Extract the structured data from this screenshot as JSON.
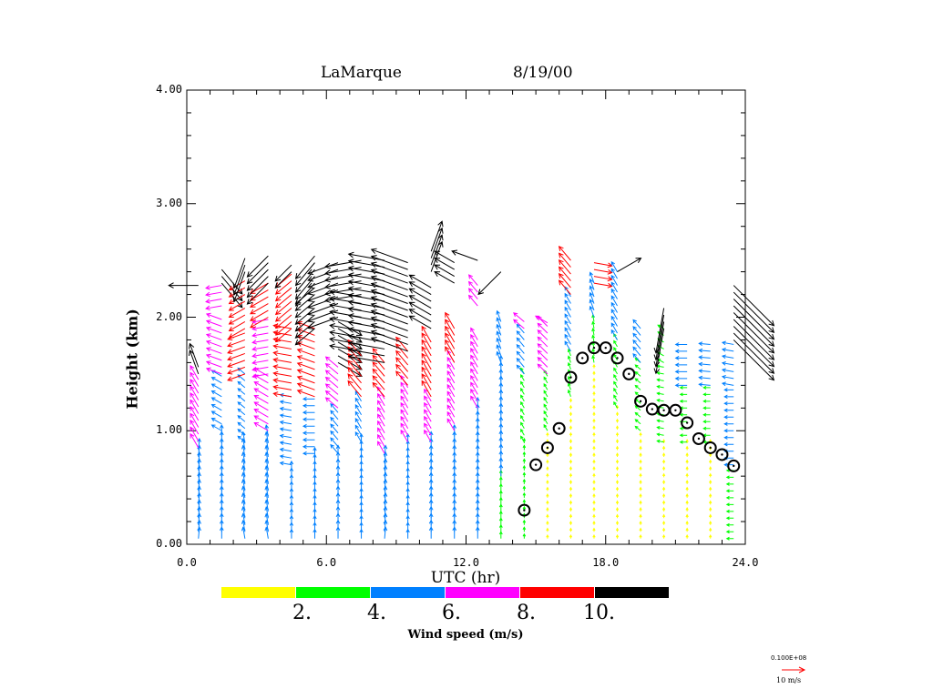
{
  "chart_data": {
    "type": "wind-profile",
    "title": "LaMarque",
    "date": "8/19/00",
    "xlabel": "UTC (hr)",
    "ylabel": "Height (km)",
    "xlim": [
      0,
      24
    ],
    "ylim": [
      0,
      4
    ],
    "xticks": [
      "0.0",
      "6.0",
      "12.0",
      "18.0",
      "24.0"
    ],
    "xtick_values": [
      0,
      6,
      12,
      18,
      24
    ],
    "yticks": [
      "0.00",
      "1.00",
      "2.00",
      "3.00",
      "4.00"
    ],
    "ytick_values": [
      0,
      1,
      2,
      3,
      4
    ],
    "colorbar": {
      "title": "Wind speed (m/s)",
      "labels": [
        "2.",
        "4.",
        "6.",
        "8.",
        "10."
      ],
      "colors": [
        "#ffff00",
        "#00ff00",
        "#0080ff",
        "#ff00ff",
        "#ff0000",
        "#000000"
      ]
    },
    "reference_vector": {
      "value_label": "0.100E+08",
      "unit_label": "10 m/s",
      "speed": 10,
      "color": "#ff0000"
    },
    "level_spacing_km": 0.06,
    "wind_profiles": [
      {
        "t": 0.5,
        "layers": [
          [
            0.05,
            0.85,
            5,
            185
          ],
          [
            0.85,
            1.45,
            7,
            150
          ],
          [
            1.5,
            1.6,
            11,
            160
          ],
          [
            2.28,
            2.32,
            13,
            90
          ]
        ]
      },
      {
        "t": 1.5,
        "layers": [
          [
            0.05,
            1.0,
            5,
            180
          ],
          [
            1.0,
            1.5,
            5,
            120
          ],
          [
            1.5,
            2.0,
            7,
            110
          ],
          [
            2.1,
            2.3,
            7,
            80
          ],
          [
            2.3,
            2.45,
            14,
            320
          ]
        ]
      },
      {
        "t": 2.5,
        "layers": [
          [
            0.05,
            0.9,
            5,
            170
          ],
          [
            0.9,
            1.5,
            4,
            130
          ],
          [
            1.5,
            1.9,
            8,
            70
          ],
          [
            1.9,
            2.35,
            8,
            60
          ],
          [
            2.4,
            2.55,
            14,
            20
          ]
        ]
      },
      {
        "t": 3.5,
        "layers": [
          [
            0.05,
            1.0,
            5,
            170
          ],
          [
            1.0,
            1.5,
            7,
            120
          ],
          [
            1.5,
            2.0,
            7,
            80
          ],
          [
            2.0,
            2.3,
            9,
            60
          ],
          [
            2.3,
            2.55,
            13,
            45
          ]
        ]
      },
      {
        "t": 4.5,
        "layers": [
          [
            0.05,
            0.7,
            4,
            180
          ],
          [
            0.7,
            1.3,
            5,
            100
          ],
          [
            1.3,
            1.9,
            8,
            100
          ],
          [
            1.9,
            2.4,
            9,
            50
          ],
          [
            2.4,
            2.5,
            10,
            45
          ]
        ]
      },
      {
        "t": 5.5,
        "layers": [
          [
            0.05,
            0.8,
            4,
            180
          ],
          [
            0.8,
            1.3,
            5,
            90
          ],
          [
            1.3,
            1.9,
            8,
            110
          ],
          [
            1.9,
            2.3,
            11,
            50
          ],
          [
            2.3,
            2.55,
            13,
            40
          ]
        ]
      },
      {
        "t": 6.5,
        "layers": [
          [
            0.05,
            0.8,
            5,
            180
          ],
          [
            0.8,
            1.2,
            5,
            140
          ],
          [
            1.2,
            1.6,
            7,
            130
          ],
          [
            1.6,
            2.0,
            12,
            300
          ],
          [
            2.0,
            2.5,
            14,
            70
          ]
        ]
      },
      {
        "t": 7.5,
        "layers": [
          [
            0.05,
            0.9,
            4,
            180
          ],
          [
            0.9,
            1.3,
            5,
            150
          ],
          [
            1.3,
            1.7,
            9,
            140
          ],
          [
            1.7,
            2.2,
            14,
            100
          ],
          [
            2.2,
            2.5,
            16,
            80
          ]
        ]
      },
      {
        "t": 8.5,
        "layers": [
          [
            0.05,
            0.8,
            5,
            185
          ],
          [
            0.8,
            1.3,
            6,
            150
          ],
          [
            1.3,
            1.6,
            8,
            140
          ],
          [
            1.6,
            2.5,
            16,
            100
          ]
        ]
      },
      {
        "t": 9.5,
        "layers": [
          [
            0.05,
            0.9,
            4,
            180
          ],
          [
            0.9,
            1.4,
            6,
            150
          ],
          [
            1.4,
            1.7,
            8,
            140
          ],
          [
            1.7,
            2.5,
            17,
            110
          ]
        ]
      },
      {
        "t": 10.5,
        "layers": [
          [
            0.05,
            0.9,
            5,
            180
          ],
          [
            0.9,
            1.3,
            6,
            150
          ],
          [
            1.3,
            1.8,
            8,
            150
          ],
          [
            1.9,
            2.3,
            11,
            120
          ],
          [
            2.4,
            2.6,
            14,
            200
          ]
        ]
      },
      {
        "t": 11.5,
        "layers": [
          [
            0.05,
            1.0,
            5,
            180
          ],
          [
            1.0,
            1.6,
            6,
            150
          ],
          [
            1.6,
            1.9,
            8,
            150
          ],
          [
            2.3,
            2.5,
            10,
            120
          ]
        ]
      },
      {
        "t": 12.5,
        "layers": [
          [
            0.05,
            1.2,
            5,
            180
          ],
          [
            1.2,
            1.8,
            6,
            150
          ],
          [
            2.1,
            2.3,
            6,
            140
          ],
          [
            2.5,
            2.52,
            12,
            110
          ]
        ]
      },
      {
        "t": 13.5,
        "layers": [
          [
            0.05,
            0.6,
            3,
            180
          ],
          [
            0.6,
            1.6,
            5,
            180
          ],
          [
            1.6,
            2.0,
            5,
            160
          ],
          [
            2.4,
            2.45,
            14,
            45
          ]
        ]
      },
      {
        "t": 14.5,
        "layers": [
          [
            0.05,
            0.9,
            2,
            180
          ],
          [
            0.9,
            1.5,
            3,
            150
          ],
          [
            1.5,
            1.9,
            5,
            140
          ],
          [
            1.9,
            2.0,
            6,
            130
          ]
        ]
      },
      {
        "t": 15.5,
        "layers": [
          [
            0.05,
            1.0,
            1.5,
            180
          ],
          [
            1.0,
            1.5,
            3,
            150
          ],
          [
            1.5,
            1.95,
            6,
            135
          ],
          [
            1.95,
            2.0,
            6,
            120
          ]
        ]
      },
      {
        "t": 16.5,
        "layers": [
          [
            0.05,
            1.3,
            1.5,
            180
          ],
          [
            1.3,
            1.7,
            3,
            160
          ],
          [
            1.7,
            2.2,
            5,
            150
          ],
          [
            2.2,
            2.5,
            8,
            140
          ]
        ]
      },
      {
        "t": 17.5,
        "layers": [
          [
            0.05,
            1.6,
            1.5,
            180
          ],
          [
            1.6,
            2.0,
            3,
            170
          ],
          [
            2.0,
            2.3,
            5,
            160
          ],
          [
            2.3,
            2.5,
            8,
            280
          ]
        ]
      },
      {
        "t": 18.5,
        "layers": [
          [
            0.05,
            1.2,
            1.5,
            180
          ],
          [
            1.2,
            1.8,
            3,
            150
          ],
          [
            1.8,
            2.4,
            5,
            150
          ],
          [
            2.4,
            2.45,
            12,
            240
          ]
        ]
      },
      {
        "t": 19.5,
        "layers": [
          [
            0.05,
            1.0,
            1.5,
            180
          ],
          [
            1.0,
            1.6,
            3,
            130
          ],
          [
            1.6,
            1.95,
            5,
            140
          ]
        ]
      },
      {
        "t": 20.5,
        "layers": [
          [
            0.05,
            0.9,
            1.5,
            180
          ],
          [
            0.9,
            1.6,
            3,
            100
          ],
          [
            1.6,
            1.9,
            3,
            120
          ],
          [
            1.9,
            2.1,
            20,
            10
          ]
        ]
      },
      {
        "t": 21.5,
        "layers": [
          [
            0.05,
            0.9,
            1.5,
            180
          ],
          [
            0.9,
            1.4,
            3,
            90
          ],
          [
            1.4,
            1.8,
            5,
            90
          ]
        ]
      },
      {
        "t": 22.5,
        "layers": [
          [
            0.05,
            0.9,
            1.5,
            180
          ],
          [
            0.9,
            1.4,
            3,
            90
          ],
          [
            1.4,
            1.8,
            5,
            95
          ]
        ]
      },
      {
        "t": 23.5,
        "layers": [
          [
            0.05,
            0.7,
            3,
            90
          ],
          [
            0.7,
            1.4,
            4,
            90
          ],
          [
            1.4,
            1.8,
            5,
            100
          ],
          [
            1.8,
            2.3,
            25,
            315
          ]
        ]
      }
    ],
    "boundary_layer_height": {
      "x": [
        14.5,
        15.0,
        15.5,
        16.0,
        16.5,
        17.0,
        17.5,
        18.0,
        18.5,
        19.0,
        19.5,
        20.0,
        20.5,
        21.0,
        21.5,
        22.0,
        22.5,
        23.0,
        23.5
      ],
      "y": [
        0.3,
        0.7,
        0.85,
        1.02,
        1.47,
        1.64,
        1.73,
        1.73,
        1.64,
        1.5,
        1.26,
        1.19,
        1.18,
        1.18,
        1.07,
        0.93,
        0.85,
        0.79,
        0.69
      ]
    }
  }
}
